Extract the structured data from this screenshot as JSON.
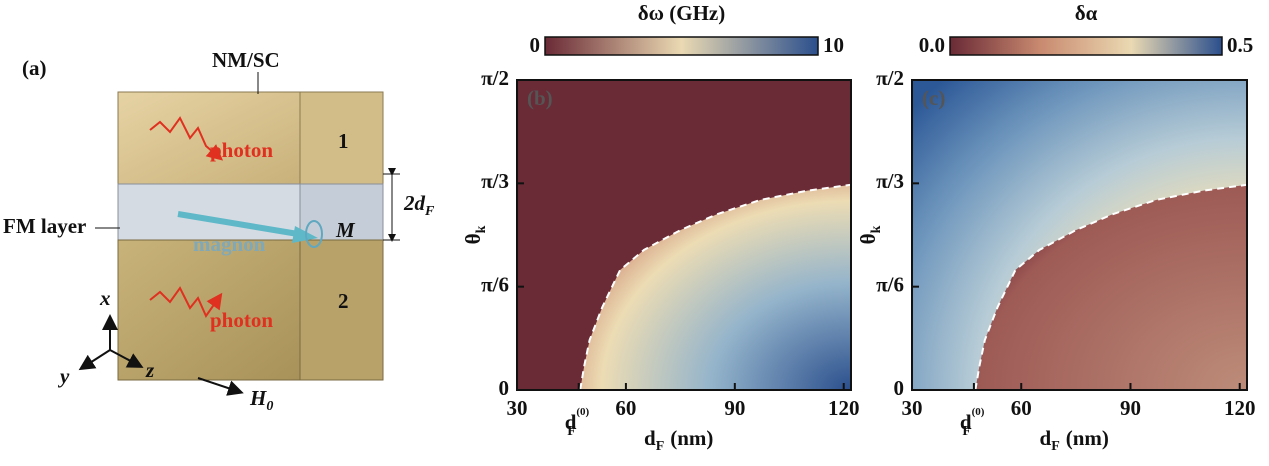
{
  "panel_a": {
    "label": "(a)",
    "top": "NM/SC",
    "layer1": "1",
    "photon_top": "photon",
    "thickness": {
      "base": "2d",
      "sub": "F"
    },
    "fm": "FM layer",
    "magnon": "magnon",
    "moment": "M",
    "layer2": "2",
    "photon_bottom": "photon",
    "axes": {
      "x": "x",
      "y": "y",
      "z": "z"
    },
    "field": {
      "base": "H",
      "sub": "0"
    }
  },
  "chart_data": [
    {
      "type": "heatmap",
      "panel": "(b)",
      "colorbar": {
        "label": "δω (GHz)",
        "lim": [
          0,
          10
        ],
        "ticks": [
          0,
          10
        ],
        "colors": [
          "#6a2a36",
          "#ead9b2",
          "#2b4f8d"
        ]
      },
      "xlabel": {
        "base": "d",
        "sub": "F",
        "rest": "(nm)"
      },
      "ylabel": {
        "base": "θ",
        "sub": "k"
      },
      "xlim": [
        30,
        122
      ],
      "xticks": [
        30,
        60,
        90,
        120
      ],
      "ylim": [
        0,
        1.5708
      ],
      "yticks": [
        0,
        {
          "value": 0.5236,
          "label": "π/6"
        },
        {
          "value": 1.0472,
          "label": "π/3"
        },
        {
          "value": 1.5708,
          "label": "π/2"
        }
      ],
      "xmark": {
        "value": 47,
        "base": "d",
        "sub": "F",
        "sup": "(0)"
      },
      "boundary": {
        "x": [
          47.4,
          48.5,
          50,
          53.5,
          58.4,
          65,
          75,
          85,
          97,
          110,
          122
        ],
        "y": [
          0,
          0.12,
          0.253,
          0.42,
          0.608,
          0.71,
          0.81,
          0.89,
          0.963,
          1.01,
          1.04
        ]
      }
    },
    {
      "type": "heatmap",
      "panel": "(c)",
      "colorbar": {
        "label": "δα",
        "lim": [
          0,
          0.5
        ],
        "ticks": [
          {
            "value": 0,
            "label": "0.0"
          },
          0.5
        ],
        "colors": [
          "#6a2a36",
          "#c98a70",
          "#ead9b2",
          "#2b4f8d"
        ]
      },
      "xlabel": {
        "base": "d",
        "sub": "F",
        "rest": "(nm)"
      },
      "ylabel": {
        "base": "θ",
        "sub": "k"
      },
      "xlim": [
        30,
        122
      ],
      "xticks": [
        30,
        60,
        90,
        120
      ],
      "ylim": [
        0,
        1.5708
      ],
      "yticks": [
        0,
        {
          "value": 0.5236,
          "label": "π/6"
        },
        {
          "value": 1.0472,
          "label": "π/3"
        },
        {
          "value": 1.5708,
          "label": "π/2"
        }
      ],
      "xmark": {
        "value": 47,
        "base": "d",
        "sub": "F",
        "sup": "(0)"
      },
      "boundary": {
        "x": [
          47.4,
          48.5,
          50,
          53.5,
          58.4,
          65,
          75,
          85,
          97,
          110,
          122
        ],
        "y": [
          0,
          0.12,
          0.253,
          0.42,
          0.608,
          0.71,
          0.81,
          0.89,
          0.963,
          1.01,
          1.04
        ]
      }
    }
  ]
}
